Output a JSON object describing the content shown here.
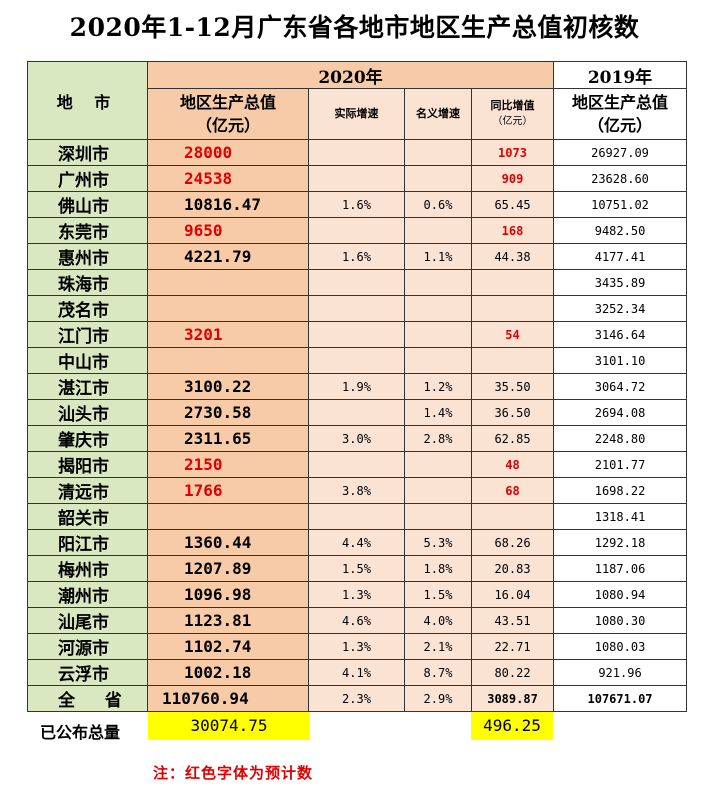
{
  "title": "2020年1-12月广东省各地市地区生产总值初核数",
  "header": {
    "region": "地 市",
    "year2020": "2020年",
    "year2019": "2019年",
    "gdp_label": "地区生产总值",
    "gdp_unit": "（亿元）",
    "real_growth": "实际增速",
    "nominal_growth": "名义增速",
    "yoy_increase": "同比增值",
    "yoy_unit": "（亿元）",
    "gdp2019_label": "地区生产总值",
    "gdp2019_unit": "（亿元）"
  },
  "rows": [
    {
      "city": "深圳市",
      "gdp2020": "28000",
      "real": "",
      "nominal": "",
      "increase": "1073",
      "gdp2019": "26927.09",
      "estimated": true
    },
    {
      "city": "广州市",
      "gdp2020": "24538",
      "real": "",
      "nominal": "",
      "increase": "909",
      "gdp2019": "23628.60",
      "estimated": true
    },
    {
      "city": "佛山市",
      "gdp2020": "10816.47",
      "real": "1.6%",
      "nominal": "0.6%",
      "increase": "65.45",
      "gdp2019": "10751.02",
      "estimated": false
    },
    {
      "city": "东莞市",
      "gdp2020": "9650",
      "real": "",
      "nominal": "",
      "increase": "168",
      "gdp2019": "9482.50",
      "estimated": true
    },
    {
      "city": "惠州市",
      "gdp2020": "4221.79",
      "real": "1.6%",
      "nominal": "1.1%",
      "increase": "44.38",
      "gdp2019": "4177.41",
      "estimated": false
    },
    {
      "city": "珠海市",
      "gdp2020": "",
      "real": "",
      "nominal": "",
      "increase": "",
      "gdp2019": "3435.89",
      "estimated": false
    },
    {
      "city": "茂名市",
      "gdp2020": "",
      "real": "",
      "nominal": "",
      "increase": "",
      "gdp2019": "3252.34",
      "estimated": false
    },
    {
      "city": "江门市",
      "gdp2020": "3201",
      "real": "",
      "nominal": "",
      "increase": "54",
      "gdp2019": "3146.64",
      "estimated": true
    },
    {
      "city": "中山市",
      "gdp2020": "",
      "real": "",
      "nominal": "",
      "increase": "",
      "gdp2019": "3101.10",
      "estimated": false
    },
    {
      "city": "湛江市",
      "gdp2020": "3100.22",
      "real": "1.9%",
      "nominal": "1.2%",
      "increase": "35.50",
      "gdp2019": "3064.72",
      "estimated": false
    },
    {
      "city": "汕头市",
      "gdp2020": "2730.58",
      "real": "",
      "nominal": "1.4%",
      "increase": "36.50",
      "gdp2019": "2694.08",
      "estimated": false
    },
    {
      "city": "肇庆市",
      "gdp2020": "2311.65",
      "real": "3.0%",
      "nominal": "2.8%",
      "increase": "62.85",
      "gdp2019": "2248.80",
      "estimated": false
    },
    {
      "city": "揭阳市",
      "gdp2020": "2150",
      "real": "",
      "nominal": "",
      "increase": "48",
      "gdp2019": "2101.77",
      "estimated": true
    },
    {
      "city": "清远市",
      "gdp2020": "1766",
      "real": "3.8%",
      "nominal": "",
      "increase": "68",
      "gdp2019": "1698.22",
      "estimated": true
    },
    {
      "city": "韶关市",
      "gdp2020": "",
      "real": "",
      "nominal": "",
      "increase": "",
      "gdp2019": "1318.41",
      "estimated": false
    },
    {
      "city": "阳江市",
      "gdp2020": "1360.44",
      "real": "4.4%",
      "nominal": "5.3%",
      "increase": "68.26",
      "gdp2019": "1292.18",
      "estimated": false
    },
    {
      "city": "梅州市",
      "gdp2020": "1207.89",
      "real": "1.5%",
      "nominal": "1.8%",
      "increase": "20.83",
      "gdp2019": "1187.06",
      "estimated": false
    },
    {
      "city": "潮州市",
      "gdp2020": "1096.98",
      "real": "1.3%",
      "nominal": "1.5%",
      "increase": "16.04",
      "gdp2019": "1080.94",
      "estimated": false
    },
    {
      "city": "汕尾市",
      "gdp2020": "1123.81",
      "real": "4.6%",
      "nominal": "4.0%",
      "increase": "43.51",
      "gdp2019": "1080.30",
      "estimated": false
    },
    {
      "city": "河源市",
      "gdp2020": "1102.74",
      "real": "1.3%",
      "nominal": "2.1%",
      "increase": "22.71",
      "gdp2019": "1080.03",
      "estimated": false
    },
    {
      "city": "云浮市",
      "gdp2020": "1002.18",
      "real": "4.1%",
      "nominal": "8.7%",
      "increase": "80.22",
      "gdp2019": "921.96",
      "estimated": false
    }
  ],
  "total": {
    "city": "全 省",
    "gdp2020": "110760.94",
    "real": "2.3%",
    "nominal": "2.9%",
    "increase": "3089.87",
    "gdp2019": "107671.07"
  },
  "published": {
    "label": "已公布总量",
    "gdp_total": "30074.75",
    "increase_total": "496.25"
  },
  "note": "注：红色字体为预计数",
  "colors": {
    "estimated_text": "#e00000",
    "header_green": "#d9e8c1",
    "peach": "#f8cba8",
    "light_peach": "#fbe3d4",
    "highlight": "#ffff00"
  }
}
